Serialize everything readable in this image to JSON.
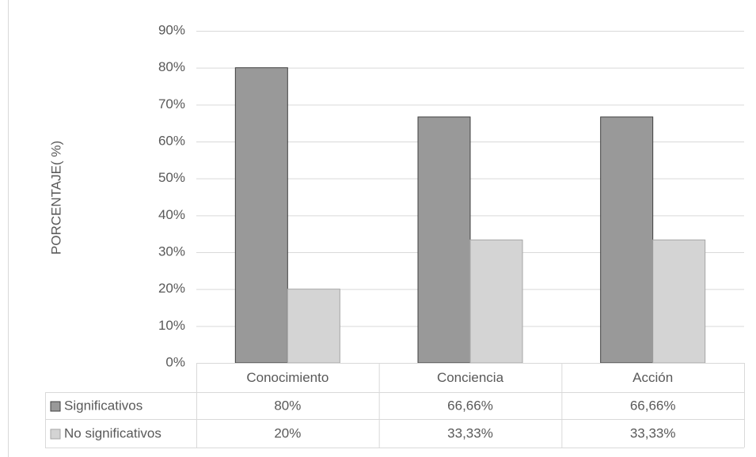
{
  "chart_data": {
    "type": "bar",
    "y_label": "PORCENTAJE( %)",
    "categories": [
      "Conocimiento",
      "Conciencia",
      "Acción"
    ],
    "series": [
      {
        "name": "Significativos",
        "color": "#999999",
        "stroke": "#404040",
        "values": [
          80,
          66.66,
          66.66
        ],
        "value_labels": [
          "80%",
          "66,66%",
          "66,66%"
        ]
      },
      {
        "name": "No significativos",
        "color": "#d4d4d4",
        "stroke": "#a6a6a6",
        "values": [
          20,
          33.33,
          33.33
        ],
        "value_labels": [
          "20%",
          "33,33%",
          "33,33%"
        ]
      }
    ],
    "ylim": [
      0,
      90
    ],
    "yticks": [
      {
        "value": 0,
        "label": "0%"
      },
      {
        "value": 10,
        "label": "10%"
      },
      {
        "value": 20,
        "label": "20%"
      },
      {
        "value": 30,
        "label": "30%"
      },
      {
        "value": 40,
        "label": "40%"
      },
      {
        "value": 50,
        "label": "50%"
      },
      {
        "value": 60,
        "label": "60%"
      },
      {
        "value": 70,
        "label": "70%"
      },
      {
        "value": 80,
        "label": "80%"
      },
      {
        "value": 90,
        "label": "90%"
      }
    ],
    "grid": true
  }
}
